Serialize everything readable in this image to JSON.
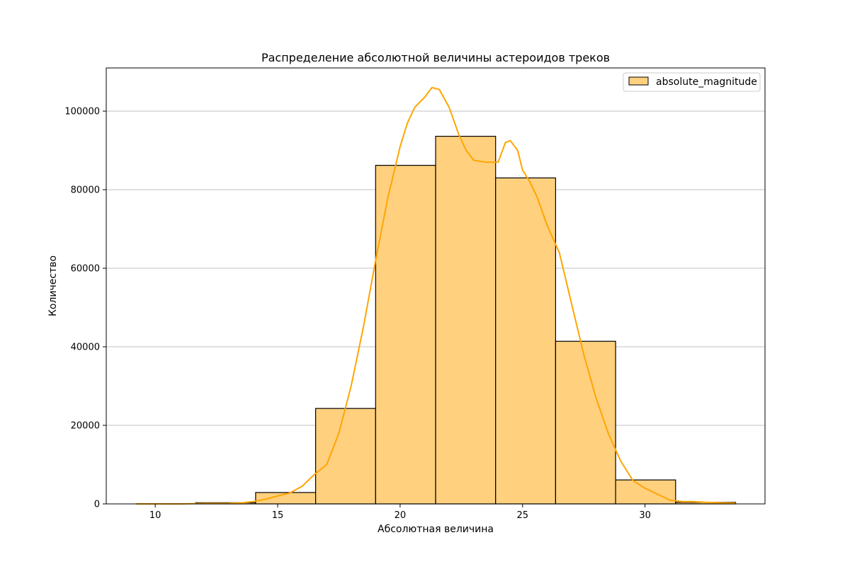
{
  "chart_data": {
    "type": "bar",
    "title": "Распределение абсолютной величины астероидов треков",
    "xlabel": "Абсолютная величина",
    "ylabel": "Количество",
    "xlim": [
      8.0,
      34.9
    ],
    "ylim": [
      0,
      111000
    ],
    "x_ticks": [
      10,
      15,
      20,
      25,
      30
    ],
    "y_ticks": [
      0,
      20000,
      40000,
      60000,
      80000,
      100000
    ],
    "grid": "horizontal",
    "legend_position": "top-right",
    "bar_color": "#ffd07e",
    "bar_edge_color": "#000000",
    "kde_color": "#ffa500",
    "series": [
      {
        "name": "absolute_magnitude",
        "bins": [
          {
            "x0": 9.2,
            "x1": 11.65,
            "value": 0
          },
          {
            "x0": 11.65,
            "x1": 14.1,
            "value": 300
          },
          {
            "x0": 14.1,
            "x1": 16.55,
            "value": 2900
          },
          {
            "x0": 16.55,
            "x1": 19.0,
            "value": 24300
          },
          {
            "x0": 19.0,
            "x1": 21.45,
            "value": 86200
          },
          {
            "x0": 21.45,
            "x1": 23.9,
            "value": 93600
          },
          {
            "x0": 23.9,
            "x1": 26.35,
            "value": 83000
          },
          {
            "x0": 26.35,
            "x1": 28.8,
            "value": 41400
          },
          {
            "x0": 28.8,
            "x1": 31.25,
            "value": 6100
          },
          {
            "x0": 31.25,
            "x1": 33.7,
            "value": 400
          }
        ]
      }
    ],
    "kde": {
      "x": [
        9.2,
        10,
        11,
        12,
        13,
        13.5,
        14.0,
        14.5,
        15.0,
        15.5,
        16.0,
        16.5,
        17.0,
        17.5,
        18.0,
        18.5,
        19.0,
        19.5,
        20.0,
        20.3,
        20.6,
        21.0,
        21.3,
        21.6,
        22.0,
        22.4,
        22.7,
        23.0,
        23.5,
        24.0,
        24.3,
        24.5,
        24.8,
        25.0,
        25.3,
        25.6,
        26.0,
        26.5,
        27.0,
        27.5,
        28.0,
        28.5,
        29.0,
        29.5,
        30.0,
        30.5,
        31.0,
        31.5,
        32.0,
        32.5,
        33.0,
        33.7
      ],
      "y": [
        0,
        0,
        0,
        100,
        150,
        250,
        600,
        1200,
        2000,
        2800,
        4500,
        7500,
        10000,
        18000,
        30000,
        45000,
        62000,
        78000,
        91000,
        97000,
        101000,
        103500,
        106000,
        105500,
        101000,
        94000,
        90000,
        87500,
        87000,
        87000,
        92000,
        92500,
        90000,
        85000,
        82000,
        78000,
        71000,
        64000,
        51000,
        38000,
        27000,
        18000,
        11000,
        6000,
        4000,
        2500,
        1000,
        600,
        600,
        400,
        300,
        200
      ]
    }
  }
}
